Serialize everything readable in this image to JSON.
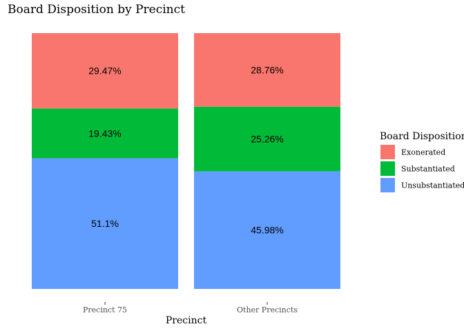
{
  "chart_data": {
    "type": "bar",
    "stacked": true,
    "title": "Board Disposition by Precinct",
    "xlabel": "Precinct",
    "ylabel": "",
    "categories": [
      "Precinct 75",
      "Other Precincts"
    ],
    "series": [
      {
        "name": "Exonerated",
        "values": [
          29.47,
          28.76
        ],
        "labels": [
          "29.47%",
          "28.76%"
        ],
        "color": "#F8766D"
      },
      {
        "name": "Substantiated",
        "values": [
          19.43,
          25.26
        ],
        "labels": [
          "19.43%",
          "25.26%"
        ],
        "color": "#00BA38"
      },
      {
        "name": "Unsubstantiated",
        "values": [
          51.1,
          45.98
        ],
        "labels": [
          "51.1%",
          "45.98%"
        ],
        "color": "#619CFF"
      }
    ],
    "ylim": [
      0,
      100
    ],
    "grid": false,
    "legend": {
      "title": "Board Disposition",
      "position": "right"
    }
  }
}
